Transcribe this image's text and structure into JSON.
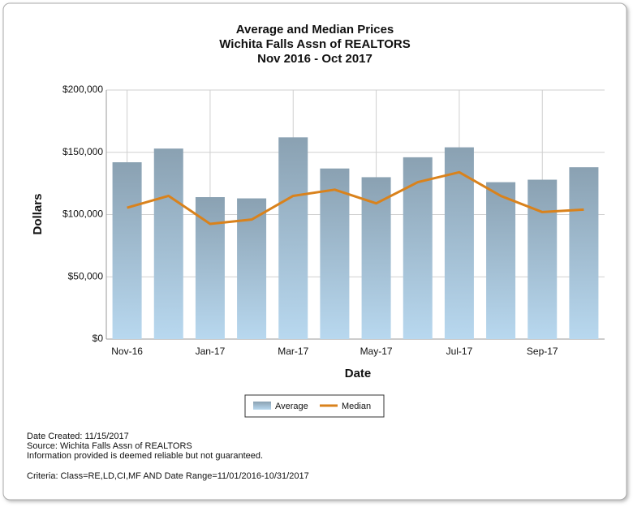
{
  "chart_data": {
    "type": "bar",
    "title": "Average and Median Prices",
    "subtitle": "Wichita Falls Assn of REALTORS",
    "period": "Nov 2016 - Oct 2017",
    "x_label": "Date",
    "y_label": "Dollars",
    "categories": [
      "Nov-16",
      null,
      "Jan-17",
      null,
      "Mar-17",
      null,
      "May-17",
      null,
      "Jul-17",
      null,
      "Sep-17",
      null
    ],
    "series": [
      {
        "name": "Average",
        "type": "bar",
        "color": "#8aa1b2",
        "values": [
          142000,
          153000,
          114000,
          113000,
          162000,
          137000,
          130000,
          146000,
          154000,
          126000,
          128000,
          138000
        ]
      },
      {
        "name": "Median",
        "type": "line",
        "color": "#d9821c",
        "values": [
          105500,
          115000,
          92500,
          96000,
          115000,
          120000,
          109000,
          126000,
          134000,
          115000,
          102000,
          104000
        ]
      }
    ],
    "ylim": [
      0,
      200000
    ],
    "yticks": [
      {
        "value": 0,
        "label": "$0"
      },
      {
        "value": 50000,
        "label": "$50,000"
      },
      {
        "value": 100000,
        "label": "$100,000"
      },
      {
        "value": 150000,
        "label": "$150,000"
      },
      {
        "value": 200000,
        "label": "$200,000"
      }
    ],
    "grid": true,
    "legend": "bottom"
  },
  "footer": {
    "lines": [
      "Date Created: 11/15/2017",
      "Source: Wichita Falls Assn of REALTORS",
      "Information provided is deemed reliable but not guaranteed."
    ],
    "criteria": "Criteria: Class=RE,LD,CI,MF AND Date Range=11/01/2016-10/31/2017"
  }
}
